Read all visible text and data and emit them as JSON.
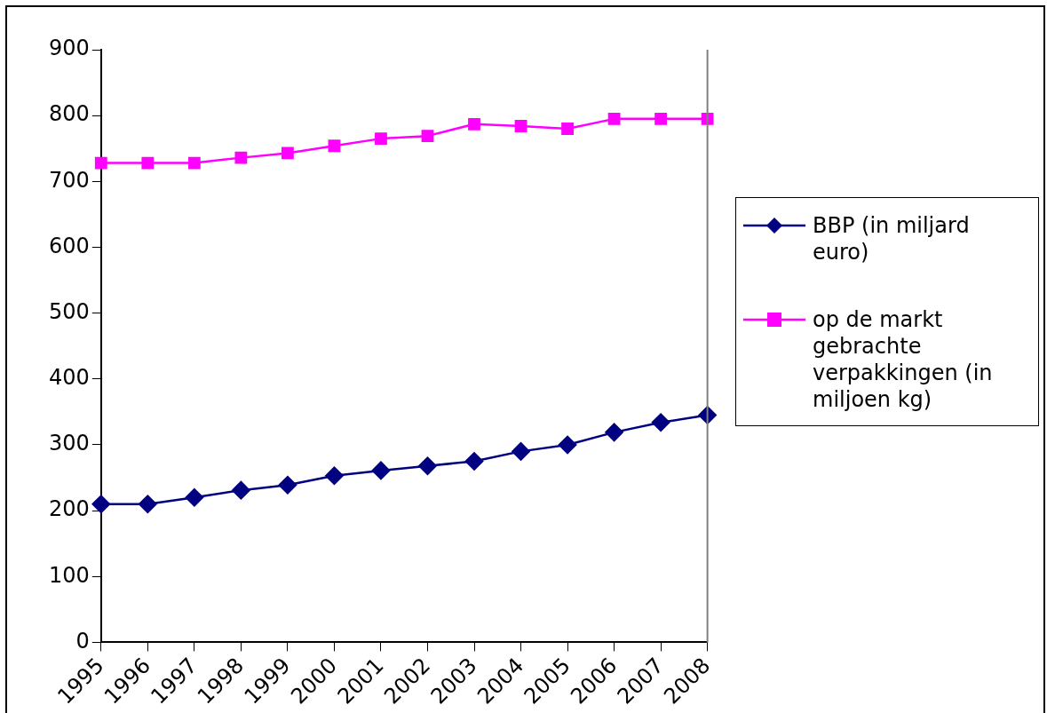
{
  "chart_data": {
    "type": "line",
    "categories": [
      "1995",
      "1996",
      "1997",
      "1998",
      "1999",
      "2000",
      "2001",
      "2002",
      "2003",
      "2004",
      "2005",
      "2006",
      "2007",
      "2008"
    ],
    "series": [
      {
        "name": "BBP (in miljard euro)",
        "color": "#000080",
        "marker": "diamond",
        "values": [
          210,
          210,
          220,
          231,
          239,
          253,
          261,
          268,
          275,
          290,
          300,
          319,
          334,
          345
        ]
      },
      {
        "name": "op de markt gebrachte verpakkingen (in miljoen kg)",
        "color": "#ff00ff",
        "marker": "square",
        "values": [
          728,
          728,
          728,
          736,
          743,
          754,
          765,
          769,
          787,
          784,
          780,
          795,
          795,
          795
        ]
      }
    ],
    "ylim": [
      0,
      900
    ],
    "yticks": [
      0,
      100,
      200,
      300,
      400,
      500,
      600,
      700,
      800,
      900
    ],
    "grid": false,
    "legend": "right",
    "line_style": "solid"
  }
}
